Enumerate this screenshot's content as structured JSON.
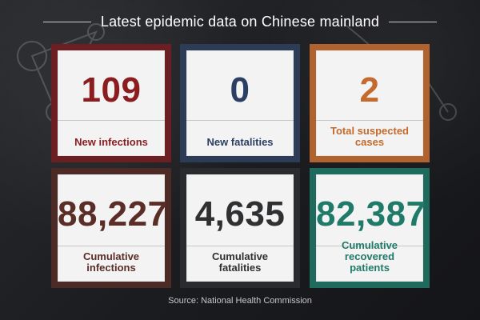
{
  "header": {
    "title": "Latest epidemic data on Chinese mainland"
  },
  "cards": [
    {
      "value": "109",
      "label": "New infections",
      "accent": "#6b1f23"
    },
    {
      "value": "0",
      "label": "New fatalities",
      "accent": "#2c3b56"
    },
    {
      "value": "2",
      "label": "Total suspected cases",
      "accent": "#b0622f"
    },
    {
      "value": "88,227",
      "label": "Cumulative infections",
      "accent": "#4c2a26"
    },
    {
      "value": "4,635",
      "label": "Cumulative fatalities",
      "accent": "#2a2b2f"
    },
    {
      "value": "82,387",
      "label": "Cumulative recovered patients",
      "accent": "#1e6b5e"
    }
  ],
  "footer": {
    "source": "Source: National Health Commission"
  }
}
